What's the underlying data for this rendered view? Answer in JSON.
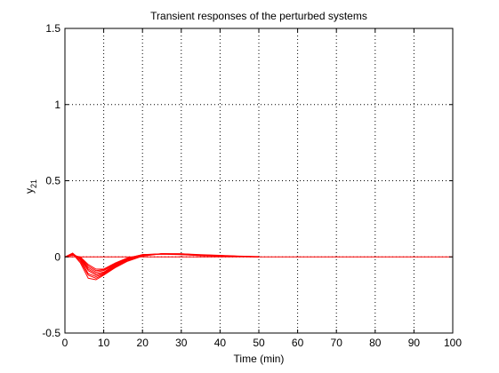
{
  "chart_data": {
    "type": "line",
    "title": "Transient responses of the perturbed systems",
    "xlabel": "Time (min)",
    "ylabel_base": "y",
    "ylabel_sub": "21",
    "xlim": [
      0,
      100
    ],
    "ylim": [
      -0.5,
      1.5
    ],
    "xticks": [
      0,
      10,
      20,
      30,
      40,
      50,
      60,
      70,
      80,
      90,
      100
    ],
    "yticks": [
      -0.5,
      0,
      0.5,
      1,
      1.5
    ],
    "ytick_labels": [
      "-0.5",
      "0",
      "0.5",
      "1",
      "1.5"
    ],
    "grid": true,
    "line_color": "#ff0000",
    "series": [
      {
        "x": [
          0,
          2,
          4,
          6,
          8,
          10,
          13,
          16,
          20,
          25,
          30,
          35,
          40,
          45,
          50
        ],
        "y": [
          0,
          0.02,
          -0.04,
          -0.14,
          -0.15,
          -0.12,
          -0.07,
          -0.03,
          0.005,
          0.02,
          0.02,
          0.015,
          0.01,
          0.005,
          0.002
        ]
      },
      {
        "x": [
          0,
          2,
          4,
          6,
          8,
          10,
          13,
          16,
          20,
          25,
          30,
          35,
          40,
          45,
          50
        ],
        "y": [
          0,
          0.025,
          -0.02,
          -0.11,
          -0.13,
          -0.11,
          -0.06,
          -0.02,
          0.01,
          0.02,
          0.02,
          0.012,
          0.008,
          0.004,
          0.001
        ]
      },
      {
        "x": [
          0,
          2,
          4,
          6,
          8,
          10,
          13,
          16,
          20,
          25,
          30,
          35,
          40,
          45,
          50
        ],
        "y": [
          0,
          0.02,
          -0.01,
          -0.08,
          -0.11,
          -0.1,
          -0.05,
          -0.015,
          0.012,
          0.02,
          0.018,
          0.01,
          0.006,
          0.003,
          0.001
        ]
      },
      {
        "x": [
          0,
          2,
          4,
          6,
          8,
          10,
          13,
          16,
          20,
          25,
          30,
          35,
          40,
          45,
          50
        ],
        "y": [
          0,
          0.015,
          -0.005,
          -0.06,
          -0.09,
          -0.085,
          -0.045,
          -0.01,
          0.015,
          0.02,
          0.016,
          0.01,
          0.005,
          0.002,
          0.0
        ]
      },
      {
        "x": [
          0,
          2,
          4,
          6,
          8,
          10,
          13,
          16,
          20,
          25,
          30,
          35,
          40,
          45,
          50
        ],
        "y": [
          0,
          0.01,
          0.0,
          -0.05,
          -0.08,
          -0.08,
          -0.04,
          -0.008,
          0.015,
          0.018,
          0.015,
          0.008,
          0.004,
          0.002,
          0.0
        ]
      },
      {
        "x": [
          0,
          2,
          4,
          6,
          8,
          10,
          13,
          16,
          20,
          25,
          30,
          35,
          40,
          45,
          50
        ],
        "y": [
          0,
          0.02,
          -0.03,
          -0.12,
          -0.14,
          -0.115,
          -0.065,
          -0.025,
          0.008,
          0.02,
          0.019,
          0.013,
          0.009,
          0.004,
          0.001
        ]
      },
      {
        "x": [
          0,
          2,
          4,
          6,
          8,
          10,
          13,
          16,
          20,
          25,
          30,
          35,
          40,
          45,
          50
        ],
        "y": [
          0,
          0.018,
          -0.015,
          -0.09,
          -0.12,
          -0.105,
          -0.055,
          -0.018,
          0.011,
          0.02,
          0.017,
          0.011,
          0.007,
          0.003,
          0.001
        ]
      },
      {
        "x": [
          0,
          2,
          4,
          6,
          8,
          10,
          13,
          16,
          20,
          25,
          30,
          35,
          40,
          45,
          50
        ],
        "y": [
          0,
          0.012,
          -0.008,
          -0.07,
          -0.1,
          -0.09,
          -0.048,
          -0.012,
          0.014,
          0.019,
          0.016,
          0.009,
          0.005,
          0.002,
          0.0
        ]
      },
      {
        "x": [
          0,
          100
        ],
        "y": [
          0,
          0
        ]
      }
    ]
  }
}
